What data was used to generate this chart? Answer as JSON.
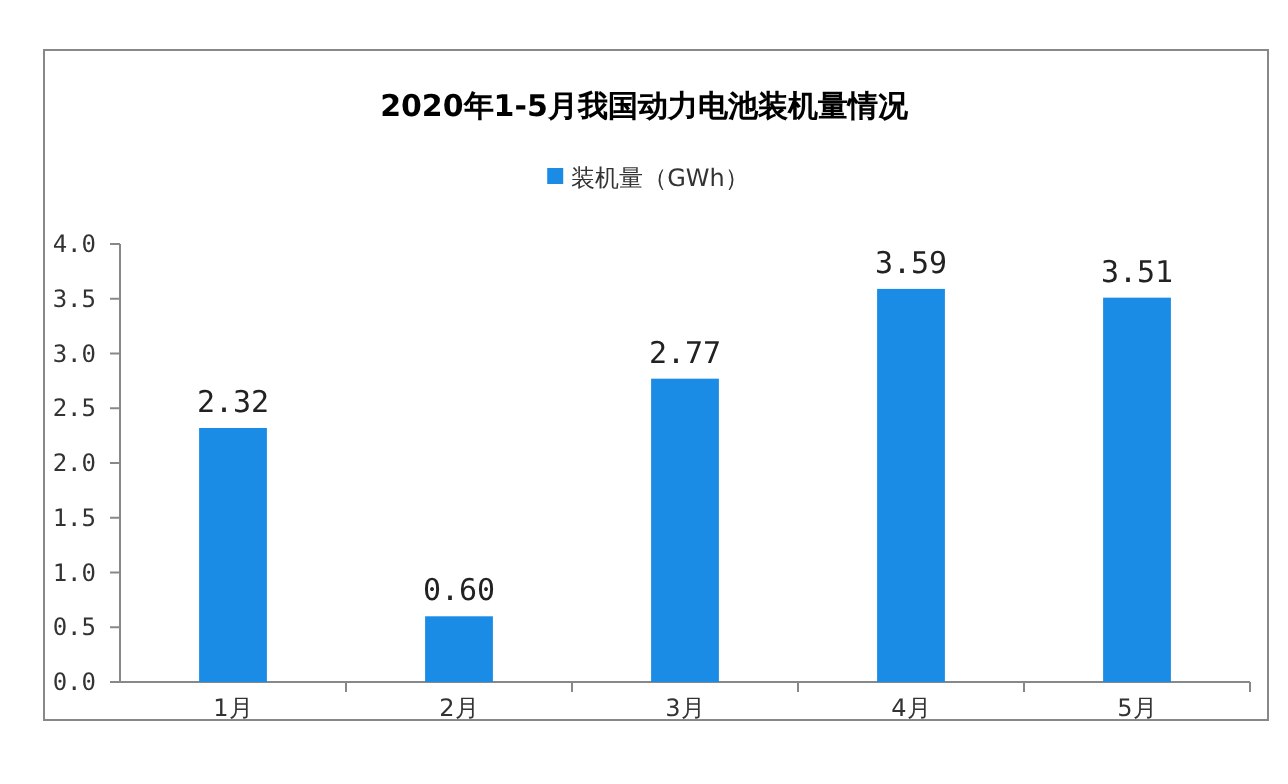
{
  "chart_data": {
    "type": "bar",
    "title": "2020年1-5月我国动力电池装机量情况",
    "categories": [
      "1月",
      "2月",
      "3月",
      "4月",
      "5月"
    ],
    "series": [
      {
        "name": "装机量（GWh）",
        "color": "#1a8ce6",
        "values": [
          2.32,
          0.6,
          2.77,
          3.59,
          3.51
        ],
        "value_labels": [
          "2.32",
          "0.60",
          "2.77",
          "3.59",
          "3.51"
        ]
      }
    ],
    "ylim": [
      0,
      4
    ],
    "yticks": [
      {
        "value": 0,
        "label": "0.0"
      },
      {
        "value": 0.5,
        "label": "0.5"
      },
      {
        "value": 1,
        "label": "1.0"
      },
      {
        "value": 1.5,
        "label": "1.5"
      },
      {
        "value": 2,
        "label": "2.0"
      },
      {
        "value": 2.5,
        "label": "2.5"
      },
      {
        "value": 3,
        "label": "3.0"
      },
      {
        "value": 3.5,
        "label": "3.5"
      },
      {
        "value": 4,
        "label": "4.0"
      }
    ],
    "legend": "top",
    "grid": false
  }
}
